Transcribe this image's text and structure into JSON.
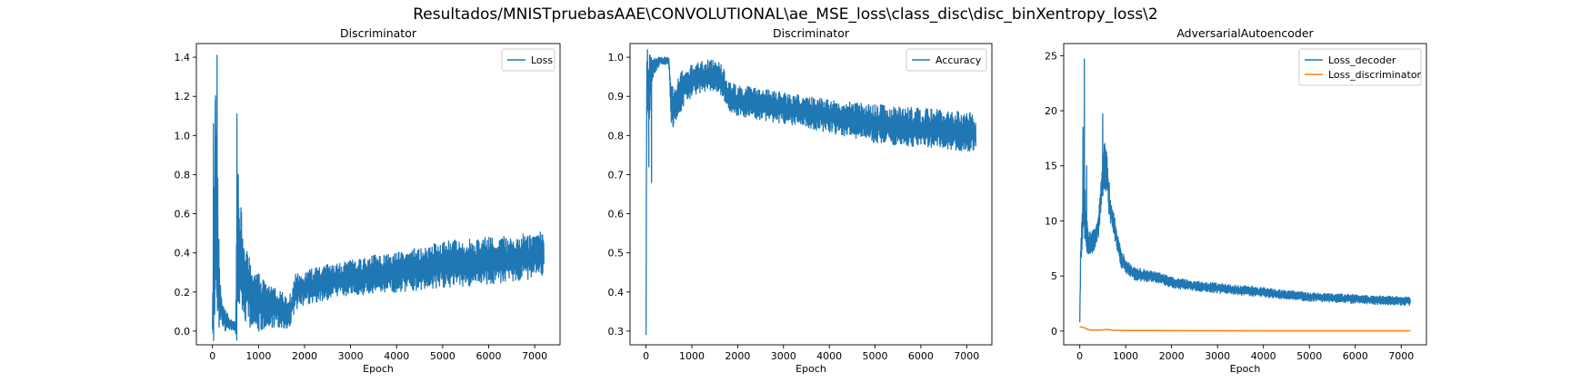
{
  "figure": {
    "suptitle": "Resultados/MNISTpruebasAAE\\CONVOLUTIONAL\\ae_MSE_loss\\class_disc\\disc_binXentropy_loss\\2"
  },
  "colors": {
    "blue": "#1f77b4",
    "orange": "#ff7f0e"
  },
  "chart_data": [
    {
      "type": "line",
      "title": "Discriminator",
      "xlabel": "Epoch",
      "ylabel": "",
      "xlim": [
        -350,
        7550
      ],
      "ylim": [
        -0.07,
        1.47
      ],
      "xticks": [
        0,
        1000,
        2000,
        3000,
        4000,
        5000,
        6000,
        7000
      ],
      "yticks": [
        0.0,
        0.2,
        0.4,
        0.6,
        0.8,
        1.0,
        1.2,
        1.4
      ],
      "grid": false,
      "legend_position": "upper right",
      "series": [
        {
          "name": "Loss",
          "color": "#1f77b4",
          "noisy": true,
          "x": [
            0,
            30,
            50,
            70,
            90,
            110,
            130,
            150,
            170,
            200,
            250,
            300,
            350,
            400,
            450,
            500,
            530,
            560,
            600,
            650,
            700,
            800,
            900,
            1000,
            1200,
            1400,
            1600,
            1700,
            1750,
            1800,
            2000,
            2500,
            3000,
            3500,
            4000,
            4500,
            5000,
            5500,
            6000,
            6500,
            7000,
            7200
          ],
          "center": [
            0.05,
            0.45,
            0.3,
            0.9,
            0.5,
            0.45,
            0.3,
            0.2,
            0.15,
            0.1,
            0.06,
            0.05,
            0.04,
            0.03,
            0.03,
            0.02,
            0.3,
            0.55,
            0.4,
            0.3,
            0.25,
            0.2,
            0.18,
            0.15,
            0.13,
            0.12,
            0.1,
            0.11,
            0.15,
            0.2,
            0.22,
            0.25,
            0.27,
            0.29,
            0.3,
            0.32,
            0.34,
            0.35,
            0.36,
            0.37,
            0.39,
            0.4
          ],
          "amplitude": [
            0.05,
            0.6,
            0.5,
            0.5,
            0.4,
            0.4,
            0.3,
            0.2,
            0.1,
            0.08,
            0.06,
            0.05,
            0.04,
            0.03,
            0.03,
            0.02,
            0.4,
            0.5,
            0.3,
            0.25,
            0.2,
            0.18,
            0.16,
            0.15,
            0.12,
            0.1,
            0.09,
            0.08,
            0.08,
            0.09,
            0.09,
            0.09,
            0.09,
            0.1,
            0.1,
            0.11,
            0.12,
            0.12,
            0.12,
            0.12,
            0.12,
            0.12
          ],
          "peaks": [
            {
              "x": 20,
              "y": 1.06
            },
            {
              "x": 60,
              "y": 1.18
            },
            {
              "x": 100,
              "y": 1.41
            },
            {
              "x": 530,
              "y": 1.11
            },
            {
              "x": 560,
              "y": 0.8
            },
            {
              "x": 1700,
              "y": 0.04
            }
          ]
        }
      ]
    },
    {
      "type": "line",
      "title": "Discriminator",
      "xlabel": "Epoch",
      "ylabel": "",
      "xlim": [
        -350,
        7550
      ],
      "ylim": [
        0.265,
        1.035
      ],
      "xticks": [
        0,
        1000,
        2000,
        3000,
        4000,
        5000,
        6000,
        7000
      ],
      "yticks": [
        0.3,
        0.4,
        0.5,
        0.6,
        0.7,
        0.8,
        0.9,
        1.0
      ],
      "grid": false,
      "legend_position": "upper right",
      "series": [
        {
          "name": "Accuracy",
          "color": "#1f77b4",
          "noisy": true,
          "x": [
            0,
            10,
            30,
            60,
            100,
            150,
            200,
            300,
            400,
            500,
            550,
            600,
            700,
            800,
            1000,
            1200,
            1400,
            1600,
            1700,
            1800,
            2000,
            2500,
            3000,
            3500,
            4000,
            4500,
            5000,
            5500,
            6000,
            6500,
            7000,
            7200
          ],
          "center": [
            0.29,
            0.85,
            0.95,
            0.92,
            0.95,
            0.97,
            0.98,
            0.99,
            0.99,
            0.99,
            0.88,
            0.87,
            0.9,
            0.92,
            0.94,
            0.95,
            0.955,
            0.95,
            0.93,
            0.9,
            0.89,
            0.88,
            0.87,
            0.86,
            0.85,
            0.84,
            0.83,
            0.825,
            0.82,
            0.815,
            0.81,
            0.81
          ],
          "amplitude": [
            0.0,
            0.12,
            0.08,
            0.12,
            0.05,
            0.03,
            0.02,
            0.01,
            0.01,
            0.01,
            0.06,
            0.05,
            0.05,
            0.05,
            0.04,
            0.04,
            0.04,
            0.04,
            0.04,
            0.04,
            0.04,
            0.04,
            0.04,
            0.04,
            0.045,
            0.045,
            0.05,
            0.05,
            0.05,
            0.05,
            0.05,
            0.05
          ],
          "peaks": [
            {
              "x": 0,
              "y": 0.29
            },
            {
              "x": 60,
              "y": 0.72
            },
            {
              "x": 120,
              "y": 0.68
            },
            {
              "x": 400,
              "y": 1.0
            }
          ]
        }
      ]
    },
    {
      "type": "line",
      "title": "AdversarialAutoencoder",
      "xlabel": "Epoch",
      "ylabel": "",
      "xlim": [
        -350,
        7550
      ],
      "ylim": [
        -1.25,
        26.1
      ],
      "xticks": [
        0,
        1000,
        2000,
        3000,
        4000,
        5000,
        6000,
        7000
      ],
      "yticks": [
        0,
        5,
        10,
        15,
        20,
        25
      ],
      "grid": false,
      "legend_position": "upper right",
      "series": [
        {
          "name": "Loss_decoder",
          "color": "#1f77b4",
          "noisy": true,
          "x": [
            0,
            20,
            50,
            80,
            120,
            160,
            200,
            250,
            300,
            350,
            400,
            450,
            500,
            550,
            600,
            650,
            700,
            750,
            800,
            850,
            900,
            1000,
            1100,
            1200,
            1500,
            1800,
            2000,
            2500,
            3000,
            3500,
            4000,
            4500,
            5000,
            5500,
            6000,
            6500,
            7000,
            7200
          ],
          "center": [
            0.8,
            7.0,
            9.0,
            12.0,
            10.0,
            8.5,
            8.0,
            8.0,
            8.2,
            8.5,
            9.5,
            11.5,
            14.0,
            15.0,
            14.0,
            11.5,
            10.5,
            9.5,
            8.5,
            7.5,
            6.5,
            6.0,
            5.5,
            5.2,
            5.0,
            4.7,
            4.4,
            4.1,
            3.9,
            3.7,
            3.5,
            3.3,
            3.1,
            3.0,
            2.9,
            2.8,
            2.75,
            2.7
          ],
          "amplitude": [
            0.0,
            1.5,
            1.5,
            3.0,
            2.5,
            1.5,
            1.0,
            1.0,
            1.0,
            1.0,
            1.5,
            2.0,
            2.5,
            2.5,
            2.0,
            1.5,
            1.0,
            1.0,
            1.0,
            0.9,
            0.8,
            0.7,
            0.6,
            0.6,
            0.55,
            0.5,
            0.5,
            0.45,
            0.45,
            0.45,
            0.45,
            0.4,
            0.4,
            0.4,
            0.4,
            0.4,
            0.4,
            0.4
          ],
          "peaks": [
            {
              "x": 0,
              "y": 0.8
            },
            {
              "x": 70,
              "y": 18.5
            },
            {
              "x": 100,
              "y": 24.7
            },
            {
              "x": 150,
              "y": 15.0
            },
            {
              "x": 500,
              "y": 19.7
            },
            {
              "x": 560,
              "y": 16.5
            }
          ]
        },
        {
          "name": "Loss_discriminator",
          "color": "#ff7f0e",
          "noisy": false,
          "x": [
            0,
            50,
            100,
            150,
            200,
            300,
            500,
            600,
            700,
            1000,
            2000,
            4000,
            7200
          ],
          "center": [
            0.4,
            0.35,
            0.3,
            0.2,
            0.12,
            0.08,
            0.1,
            0.15,
            0.08,
            0.05,
            0.04,
            0.03,
            0.03
          ],
          "amplitude": [
            0,
            0,
            0,
            0,
            0,
            0,
            0,
            0,
            0,
            0,
            0,
            0,
            0
          ],
          "peaks": []
        }
      ]
    }
  ]
}
